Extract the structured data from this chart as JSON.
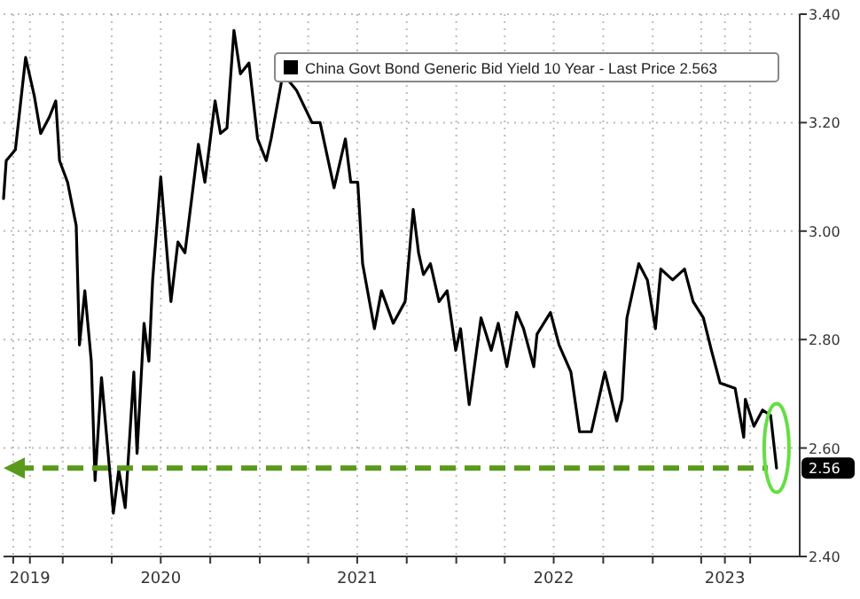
{
  "chart_data": {
    "type": "line",
    "x": [
      "2019-09-13",
      "2019-09-18",
      "2019-10-05",
      "2019-10-24",
      "2019-11-09",
      "2019-11-21",
      "2019-12-07",
      "2019-12-19",
      "2019-12-26",
      "2020-01-10",
      "2020-01-26",
      "2020-02-01",
      "2020-02-11",
      "2020-02-23",
      "2020-03-01",
      "2020-03-13",
      "2020-04-04",
      "2020-04-14",
      "2020-04-26",
      "2020-05-12",
      "2020-05-18",
      "2020-05-31",
      "2020-06-09",
      "2020-06-16",
      "2020-07-01",
      "2020-07-20",
      "2020-08-02",
      "2020-08-15",
      "2020-09-09",
      "2020-09-21",
      "2020-10-10",
      "2020-10-20",
      "2020-11-01",
      "2020-11-14",
      "2020-11-26",
      "2020-12-12",
      "2020-12-28",
      "2021-01-13",
      "2021-01-22",
      "2021-02-13",
      "2021-03-10",
      "2021-04-08",
      "2021-04-23",
      "2021-05-19",
      "2021-06-09",
      "2021-06-19",
      "2021-07-02",
      "2021-07-11",
      "2021-08-02",
      "2021-08-15",
      "2021-09-06",
      "2021-09-28",
      "2021-10-13",
      "2021-10-23",
      "2021-11-01",
      "2021-11-14",
      "2021-11-30",
      "2021-12-15",
      "2021-12-31",
      "2022-01-09",
      "2022-01-25",
      "2022-02-16",
      "2022-03-07",
      "2022-03-20",
      "2022-04-05",
      "2022-04-23",
      "2022-05-06",
      "2022-05-25",
      "2022-05-31",
      "2022-06-25",
      "2022-07-11",
      "2022-08-02",
      "2022-08-18",
      "2022-09-09",
      "2022-10-04",
      "2022-10-26",
      "2022-11-05",
      "2022-11-14",
      "2022-12-06",
      "2022-12-22",
      "2023-01-06",
      "2023-01-16",
      "2023-02-07",
      "2023-03-01",
      "2023-03-17",
      "2023-04-05",
      "2023-04-20",
      "2023-05-06",
      "2023-06-03",
      "2023-06-19",
      "2023-06-22",
      "2023-07-08",
      "2023-07-24",
      "2023-08-08",
      "2023-08-19"
    ],
    "series": [
      {
        "name": "China Govt Bond Generic Bid Yield 10 Year - Last Price 2.563",
        "color": "#000000",
        "values": [
          3.06,
          3.13,
          3.15,
          3.32,
          3.25,
          3.18,
          3.21,
          3.24,
          3.13,
          3.09,
          3.01,
          2.79,
          2.89,
          2.76,
          2.54,
          2.73,
          2.48,
          2.56,
          2.49,
          2.74,
          2.59,
          2.83,
          2.76,
          2.91,
          3.1,
          2.87,
          2.98,
          2.96,
          3.16,
          3.09,
          3.24,
          3.18,
          3.19,
          3.37,
          3.29,
          3.31,
          3.17,
          3.13,
          3.17,
          3.29,
          3.26,
          3.2,
          3.2,
          3.08,
          3.17,
          3.09,
          3.09,
          2.94,
          2.82,
          2.89,
          2.83,
          2.87,
          3.04,
          2.96,
          2.92,
          2.94,
          2.87,
          2.89,
          2.78,
          2.82,
          2.68,
          2.84,
          2.78,
          2.83,
          2.75,
          2.85,
          2.82,
          2.75,
          2.81,
          2.85,
          2.79,
          2.74,
          2.63,
          2.63,
          2.74,
          2.65,
          2.69,
          2.84,
          2.94,
          2.91,
          2.82,
          2.93,
          2.91,
          2.93,
          2.87,
          2.84,
          2.78,
          2.72,
          2.71,
          2.62,
          2.69,
          2.64,
          2.67,
          2.66,
          2.563
        ]
      }
    ],
    "xlim": [
      "2019-09-13",
      "2023-10-01"
    ],
    "xticks": [
      {
        "value": "2019-10-01",
        "label": null
      },
      {
        "value": "2019-11-01",
        "label": "2019"
      },
      {
        "value": "2020-01-01",
        "label": null
      },
      {
        "value": "2020-04-01",
        "label": null
      },
      {
        "value": "2020-07-01",
        "label": "2020"
      },
      {
        "value": "2020-10-01",
        "label": null
      },
      {
        "value": "2021-01-01",
        "label": null
      },
      {
        "value": "2021-04-01",
        "label": null
      },
      {
        "value": "2021-07-01",
        "label": "2021"
      },
      {
        "value": "2021-10-01",
        "label": null
      },
      {
        "value": "2022-01-01",
        "label": null
      },
      {
        "value": "2022-04-01",
        "label": null
      },
      {
        "value": "2022-07-01",
        "label": "2022"
      },
      {
        "value": "2022-10-01",
        "label": null
      },
      {
        "value": "2023-01-01",
        "label": null
      },
      {
        "value": "2023-04-01",
        "label": null
      },
      {
        "value": "2023-05-15",
        "label": "2023"
      },
      {
        "value": "2023-07-01",
        "label": null
      }
    ],
    "ylim": [
      2.4,
      3.4
    ],
    "yticks": [
      {
        "value": 2.4,
        "label": "2.40"
      },
      {
        "value": 2.6,
        "label": "2.60"
      },
      {
        "value": 2.8,
        "label": "2.80"
      },
      {
        "value": 3.0,
        "label": "3.00"
      },
      {
        "value": 3.2,
        "label": "3.20"
      },
      {
        "value": 3.4,
        "label": "3.40"
      }
    ],
    "ref_lines": [
      {
        "axis": "y",
        "value": 2.563,
        "label": "2.56",
        "color": "#5a9a1a",
        "line_style": "dashed"
      }
    ],
    "grid": true,
    "legend": "top right",
    "line_style": "solid",
    "marker": "none"
  }
}
